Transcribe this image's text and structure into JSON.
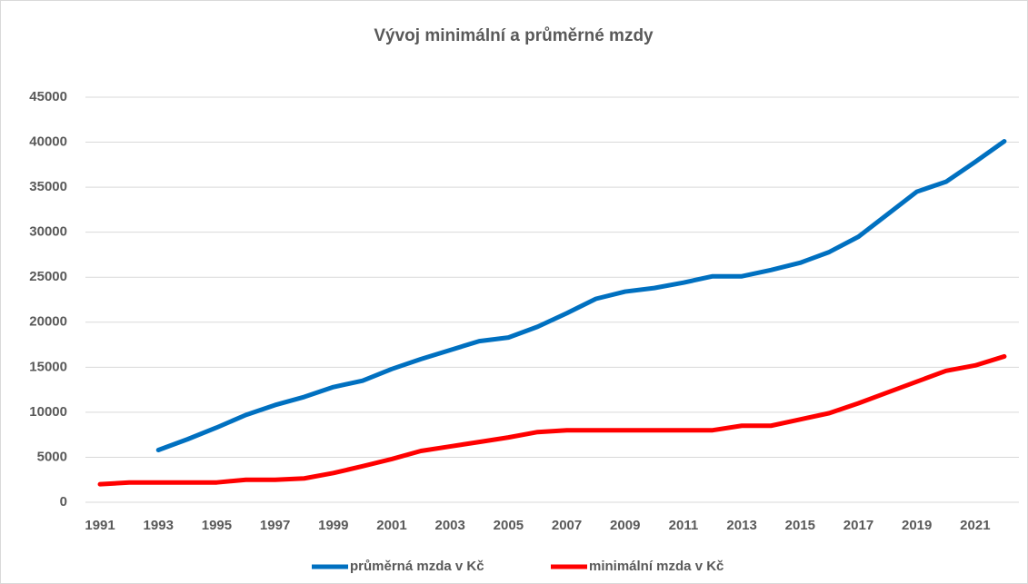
{
  "chart_data": {
    "type": "line",
    "title": "Vývoj minimální a průměrné mzdy",
    "categories": [
      "1991",
      null,
      "1993",
      null,
      "1995",
      null,
      "1997",
      null,
      "1999",
      null,
      "2001",
      null,
      "2003",
      null,
      "2005",
      null,
      "2007",
      null,
      "2009",
      null,
      "2011",
      null,
      "2013",
      null,
      "2015",
      null,
      "2017",
      null,
      "2019",
      null,
      "2021",
      null
    ],
    "series": [
      {
        "name": "průměrná mzda v Kč",
        "color": "#0070c0",
        "values": [
          null,
          null,
          5800,
          7000,
          8300,
          9700,
          10800,
          11700,
          12800,
          13500,
          14800,
          15900,
          16900,
          17900,
          18300,
          19500,
          21000,
          22600,
          23400,
          23800,
          24400,
          25100,
          25100,
          25800,
          26600,
          27800,
          29500,
          32000,
          34500,
          35600,
          37800,
          40100
        ]
      },
      {
        "name": "minimální mzda v Kč",
        "color": "#ff0000",
        "values": [
          2000,
          2200,
          2200,
          2200,
          2200,
          2500,
          2500,
          2650,
          3250,
          4000,
          4800,
          5700,
          6200,
          6700,
          7200,
          7800,
          8000,
          8000,
          8000,
          8000,
          8000,
          8000,
          8500,
          8500,
          9200,
          9900,
          11000,
          12200,
          13400,
          14600,
          15200,
          16200
        ]
      }
    ],
    "ylim": [
      0,
      45000
    ],
    "yticks": [
      0,
      5000,
      10000,
      15000,
      20000,
      25000,
      30000,
      35000,
      40000,
      45000
    ],
    "grid": true,
    "legend": "bottom"
  }
}
